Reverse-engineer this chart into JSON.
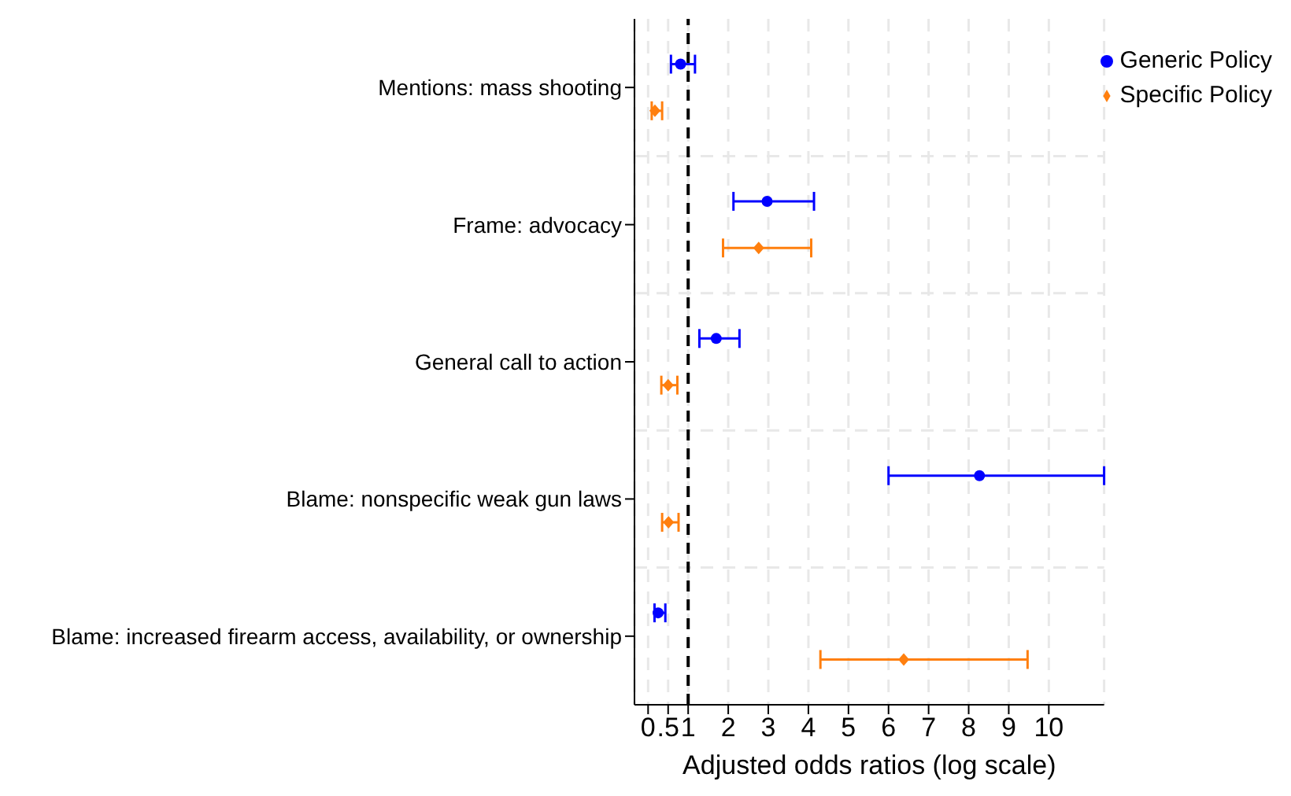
{
  "chart_data": {
    "type": "scatter",
    "orientation": "horizontal",
    "xlabel": "Adjusted odds ratios (log scale)",
    "categories": [
      "Mentions: mass shooting",
      "Frame: advocacy",
      "General call to action",
      "Blame: nonspecific weak gun laws",
      "Blame: increased firearm access, availability, or ownership"
    ],
    "series": [
      {
        "name": "Generic Policy",
        "color": "#0000ff",
        "marker": "circle",
        "values": [
          0.81,
          2.97,
          1.7,
          8.27,
          0.25
        ],
        "errors": [
          [
            0.57,
            1.17
          ],
          [
            2.13,
            4.14
          ],
          [
            1.28,
            2.28
          ],
          [
            6.0,
            11.38
          ],
          [
            0.16,
            0.43
          ]
        ]
      },
      {
        "name": "Specific Policy",
        "color": "#ff7f0e",
        "marker": "diamond",
        "values": [
          0.17,
          2.76,
          0.5,
          0.51,
          6.38
        ],
        "errors": [
          [
            0.09,
            0.35
          ],
          [
            1.87,
            4.07
          ],
          [
            0.33,
            0.73
          ],
          [
            0.35,
            0.76
          ],
          [
            4.3,
            9.47
          ]
        ]
      }
    ],
    "xlim": [
      -0.34,
      11.38
    ],
    "xticks": [
      0,
      {
        "value": 0.5,
        "label": ".5"
      },
      1,
      2,
      3,
      4,
      5,
      6,
      7,
      8,
      9,
      10
    ],
    "ref_lines": [
      {
        "axis": "x",
        "value": 1,
        "color": "#000000",
        "line_style": "dashed"
      }
    ],
    "grid": true,
    "legend": "top right"
  }
}
